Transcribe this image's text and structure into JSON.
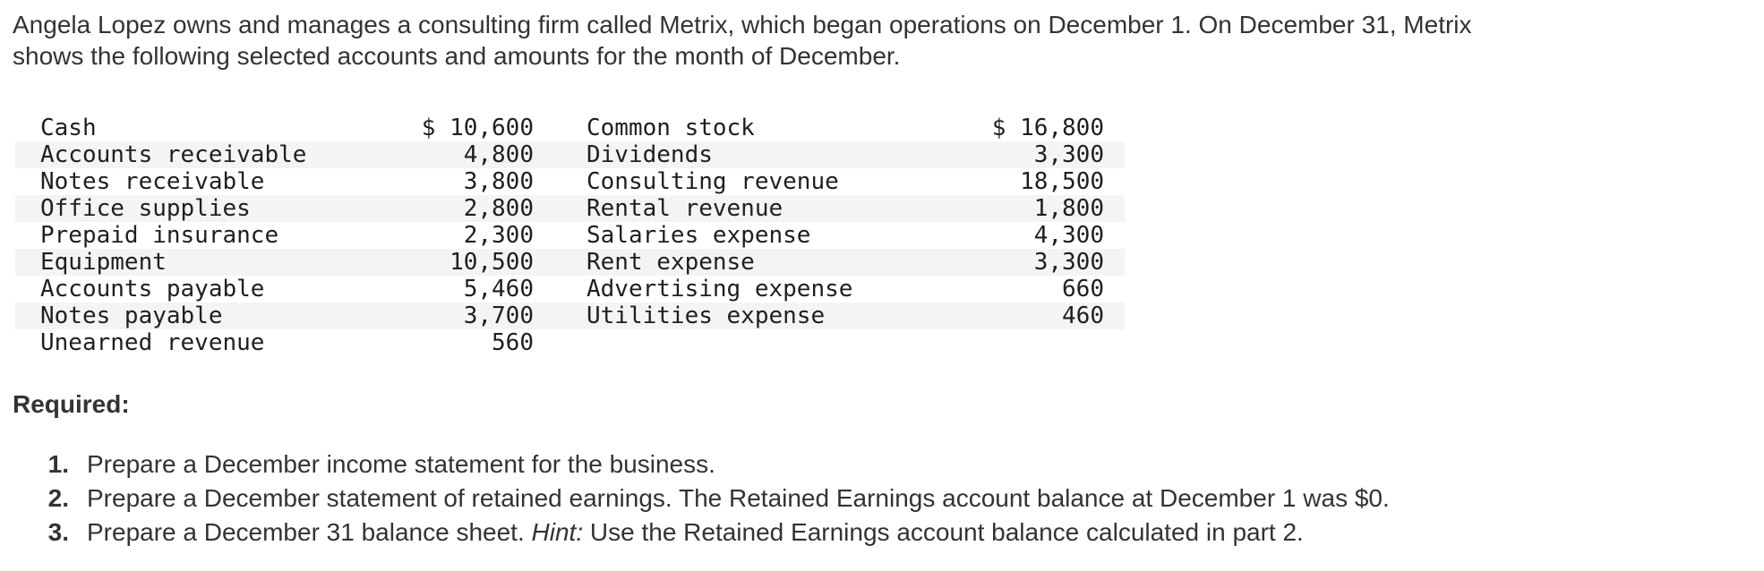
{
  "intro": {
    "text": "Angela Lopez owns and manages a consulting firm called Metrix, which began operations on December 1. On December 31, Metrix\nshows the following selected accounts and amounts for the month of December."
  },
  "accounts": {
    "rows": [
      {
        "left_name": "Cash",
        "left_amount": "$ 10,600",
        "right_name": "Common stock",
        "right_amount": "$ 16,800"
      },
      {
        "left_name": "Accounts receivable",
        "left_amount": "4,800",
        "right_name": "Dividends",
        "right_amount": "3,300"
      },
      {
        "left_name": "Notes receivable",
        "left_amount": "3,800",
        "right_name": "Consulting revenue",
        "right_amount": "18,500"
      },
      {
        "left_name": "Office supplies",
        "left_amount": "2,800",
        "right_name": "Rental revenue",
        "right_amount": "1,800"
      },
      {
        "left_name": "Prepaid insurance",
        "left_amount": "2,300",
        "right_name": "Salaries expense",
        "right_amount": "4,300"
      },
      {
        "left_name": "Equipment",
        "left_amount": "10,500",
        "right_name": "Rent expense",
        "right_amount": "3,300"
      },
      {
        "left_name": "Accounts payable",
        "left_amount": "5,460",
        "right_name": "Advertising expense",
        "right_amount": "660"
      },
      {
        "left_name": "Notes payable",
        "left_amount": "3,700",
        "right_name": "Utilities expense",
        "right_amount": "460"
      },
      {
        "left_name": "Unearned revenue",
        "left_amount": "560",
        "right_name": "",
        "right_amount": ""
      }
    ]
  },
  "required": {
    "label": "Required:",
    "items": [
      {
        "num": "1.",
        "parts": [
          {
            "t": "Prepare a December income statement for the business.",
            "i": false
          }
        ]
      },
      {
        "num": "2.",
        "parts": [
          {
            "t": "Prepare a December statement of retained earnings. The Retained Earnings account balance at December 1 was $0.",
            "i": false
          }
        ]
      },
      {
        "num": "3.",
        "parts": [
          {
            "t": "Prepare a December 31 balance sheet. ",
            "i": false
          },
          {
            "t": "Hint:",
            "i": true
          },
          {
            "t": " Use the Retained Earnings account balance calculated in part 2.",
            "i": false
          }
        ]
      }
    ]
  },
  "colors": {
    "background": "#ffffff",
    "body_text": "#333333",
    "table_text": "#1f1f1f",
    "row_stripe": "#f4f4f4"
  }
}
